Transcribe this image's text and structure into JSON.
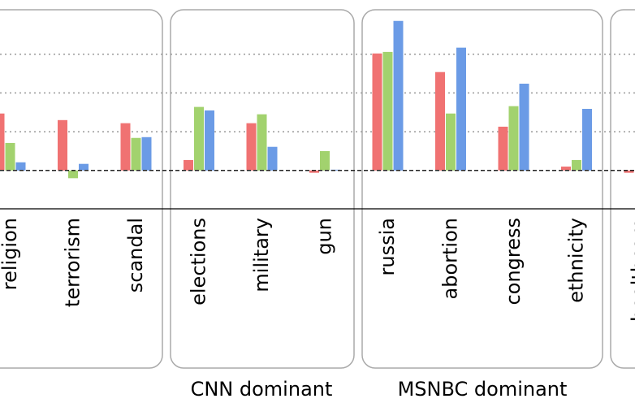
{
  "chart_data": {
    "type": "bar",
    "categories": [
      "religion",
      "terrorism",
      "scandal",
      "elections",
      "military",
      "gun",
      "russia",
      "abortion",
      "congress",
      "ethnicity",
      "healthcare"
    ],
    "series": [
      {
        "color": "#f07272",
        "values": [
          1.47,
          1.3,
          1.22,
          0.27,
          1.22,
          -0.06,
          3.02,
          2.54,
          1.13,
          0.1,
          -0.06
        ]
      },
      {
        "color": "#a2d26e",
        "values": [
          0.71,
          -0.2,
          0.84,
          1.64,
          1.45,
          0.5,
          3.06,
          1.47,
          1.66,
          0.27,
          null
        ]
      },
      {
        "color": "#6b9be6",
        "values": [
          0.21,
          0.17,
          0.86,
          1.55,
          0.61,
          0.02,
          3.86,
          3.17,
          2.24,
          1.59,
          null
        ]
      }
    ],
    "ylim": [
      -0.99,
      4.4
    ],
    "grid_lines": [
      1,
      2,
      3
    ],
    "baseline": 0,
    "groups": [
      {
        "label": "CNN dominant"
      },
      {
        "label": "MSNBC dominant"
      }
    ]
  }
}
